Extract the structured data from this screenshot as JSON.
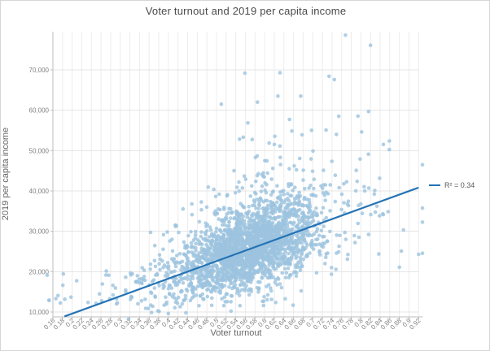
{
  "window": {
    "background": "#ffffff",
    "border_color": "#d6d6d6"
  },
  "chart_data": {
    "type": "scatter",
    "title": "Voter turnout and 2019 per capita income",
    "xlabel": "Voter turnout",
    "ylabel": "2019 per capita income",
    "xlim": [
      0.148,
      0.921
    ],
    "ylim": [
      8800,
      79500
    ],
    "x_ticks": [
      0.16,
      0.18,
      0.2,
      0.22,
      0.24,
      0.26,
      0.28,
      0.3,
      0.32,
      0.34,
      0.36,
      0.38,
      0.4,
      0.42,
      0.44,
      0.46,
      0.48,
      0.5,
      0.52,
      0.54,
      0.56,
      0.58,
      0.6,
      0.62,
      0.64,
      0.66,
      0.68,
      0.7,
      0.72,
      0.74,
      0.76,
      0.78,
      0.8,
      0.82,
      0.84,
      0.86,
      0.88,
      0.9,
      0.92
    ],
    "y_ticks": [
      10000,
      20000,
      30000,
      40000,
      50000,
      60000,
      70000
    ],
    "grid": true,
    "legend": {
      "label": "R² = 0.34",
      "position": "right-middle"
    },
    "trendline": {
      "r_squared": 0.34,
      "x1": 0.184,
      "y1": 8900,
      "x2": 0.92,
      "y2": 40830,
      "slope_per_unit_turnout": 43370,
      "intercept": 923,
      "color": "#2473b5",
      "width": 2.2
    },
    "marker": {
      "color": "#9cc3df",
      "opacity": 0.8,
      "radius": 2.3
    },
    "notable_points": [
      [
        0.148,
        19100
      ],
      [
        0.768,
        78600
      ],
      [
        0.82,
        76100
      ],
      [
        0.632,
        69300
      ],
      [
        0.559,
        69200
      ],
      [
        0.734,
        68400
      ],
      [
        0.745,
        67600
      ],
      [
        0.816,
        59700
      ],
      [
        0.754,
        58500
      ],
      [
        0.675,
        63500
      ],
      [
        0.585,
        62000
      ],
      [
        0.51,
        61500
      ],
      [
        0.317,
        8200
      ],
      [
        0.92,
        24300
      ],
      [
        0.88,
        21100
      ]
    ],
    "cloud": {
      "count": 2550,
      "seed": 1337,
      "x_components": [
        {
          "frac": 0.8,
          "mean": 0.565,
          "sd": 0.07
        },
        {
          "frac": 0.12,
          "mean": 0.63,
          "sd": 0.12
        },
        {
          "frac": 0.08,
          "mean": 0.45,
          "sd": 0.13
        }
      ],
      "x_min": 0.152,
      "x_max": 0.928,
      "line_intercept": 923,
      "line_slope": 43370,
      "resid_base_sd": 2300,
      "resid_slope_sd": 6500,
      "tail_prob_base": 0.04,
      "tail_prob_slope": 0.16,
      "tail_scale_base": 4500,
      "tail_scale_slope": 16000,
      "y_floor": 9000,
      "y_cap": 78800
    },
    "colors": {
      "grid_vertical": "#ececec",
      "grid_horizontal": "#e4e4e4",
      "axis_line": "#bdbdbd",
      "tick_text": "#808080",
      "title_text": "#4a4a4a",
      "axis_title_text": "#666666",
      "legend_text": "#595959"
    }
  }
}
